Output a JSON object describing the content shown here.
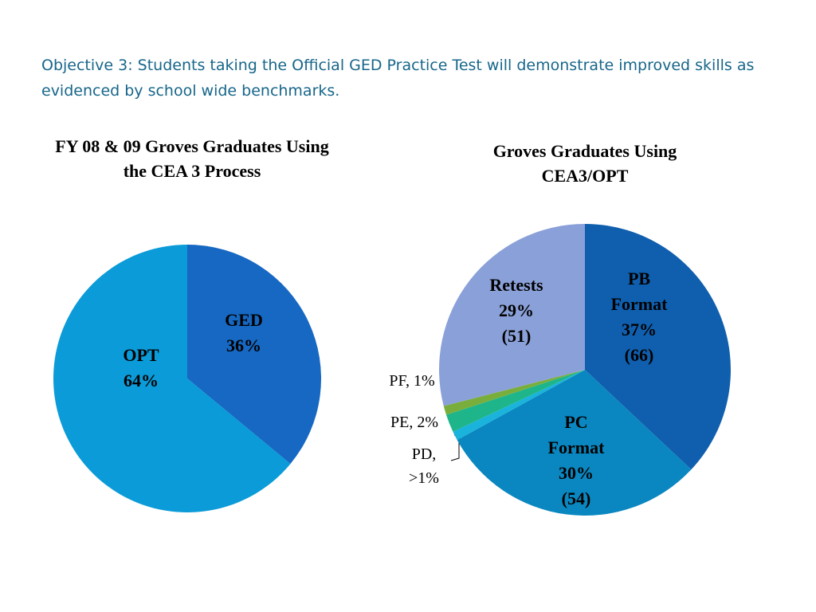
{
  "header": {
    "title": "Objective 3:  Students taking the Official GED Practice Test will demonstrate improved skills as evidenced by school wide benchmarks."
  },
  "chart_data": [
    {
      "type": "pie",
      "title": "FY 08 & 09 Groves Graduates Using the CEA 3 Process",
      "categories": [
        "GED",
        "OPT"
      ],
      "values": [
        36,
        64
      ],
      "value_labels": [
        "36%",
        "64%"
      ],
      "colors": [
        "#1668c2",
        "#0a9bd8"
      ]
    },
    {
      "type": "pie",
      "title": "Groves Graduates Using CEA3/OPT",
      "categories": [
        "PB Format",
        "PC Format",
        "PD",
        "PE",
        "PF",
        "Retests"
      ],
      "values": [
        37,
        30,
        1,
        2,
        1,
        29
      ],
      "value_labels": [
        "37%",
        "30%",
        ">1%",
        "2%",
        "1%",
        "29%"
      ],
      "counts": [
        66,
        54,
        null,
        null,
        null,
        51
      ],
      "count_labels": [
        "(66)",
        "(54)",
        null,
        null,
        null,
        "(51)"
      ],
      "colors": [
        "#0f5fae",
        "#0a87c0",
        "#1ab3dc",
        "#1fb58a",
        "#7aae3c",
        "#8aa0d8"
      ]
    }
  ]
}
